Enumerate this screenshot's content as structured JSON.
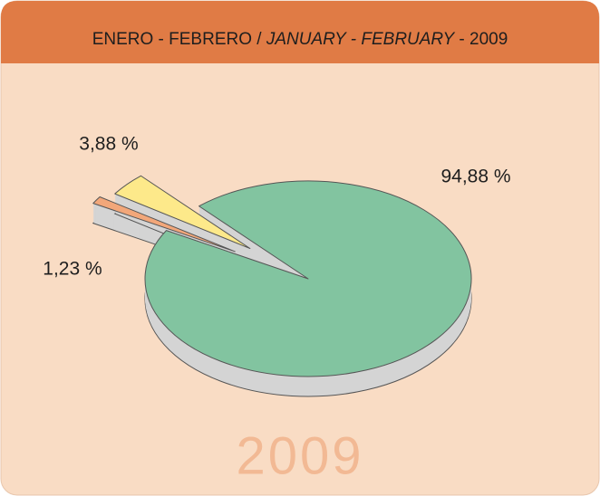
{
  "chart_data": {
    "type": "pie",
    "title": [
      "ENERO - FEBRERO / ",
      "JANUARY - FEBRUARY",
      " - 2009"
    ],
    "values": [
      94.88,
      1.23,
      3.88
    ],
    "value_labels": [
      "94,88 %",
      "1,23 %",
      "3,88 %"
    ],
    "colors": [
      "#82c4a0",
      "#f2a77a",
      "#fde98a"
    ],
    "annotation": "2009"
  }
}
